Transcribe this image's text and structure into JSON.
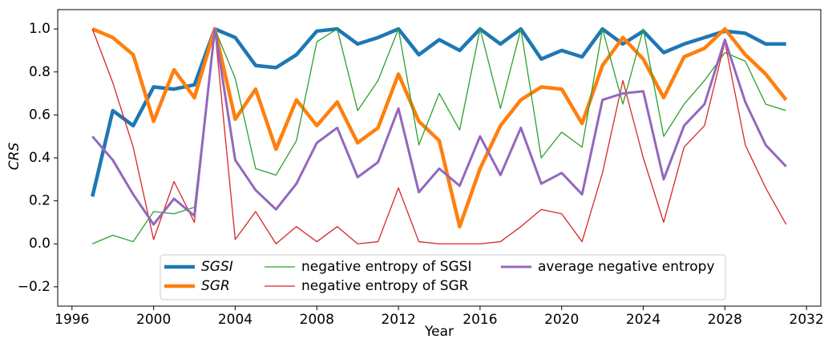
{
  "chart_data": {
    "type": "line",
    "x_label": "Year",
    "y_label": "CRS",
    "x": [
      1997,
      1998,
      1999,
      2000,
      2001,
      2002,
      2003,
      2004,
      2005,
      2006,
      2007,
      2008,
      2009,
      2010,
      2011,
      2012,
      2013,
      2014,
      2015,
      2016,
      2017,
      2018,
      2019,
      2020,
      2021,
      2022,
      2023,
      2024,
      2025,
      2026,
      2027,
      2028,
      2029,
      2030,
      2031
    ],
    "series": [
      {
        "name": "SGSI",
        "color": "#1f77b4",
        "values": [
          0.22,
          0.62,
          0.55,
          0.73,
          0.72,
          0.74,
          1.0,
          0.96,
          0.83,
          0.82,
          0.88,
          0.99,
          1.0,
          0.93,
          0.96,
          1.0,
          0.88,
          0.95,
          0.9,
          1.0,
          0.93,
          1.0,
          0.86,
          0.9,
          0.87,
          1.0,
          0.93,
          0.99,
          0.89,
          0.93,
          0.96,
          0.99,
          0.98,
          0.93,
          0.93
        ]
      },
      {
        "name": "SGR",
        "color": "#ff7f0e",
        "values": [
          1.0,
          0.96,
          0.88,
          0.57,
          0.81,
          0.68,
          1.0,
          0.58,
          0.72,
          0.44,
          0.67,
          0.55,
          0.66,
          0.47,
          0.54,
          0.79,
          0.57,
          0.48,
          0.08,
          0.35,
          0.55,
          0.67,
          0.73,
          0.72,
          0.56,
          0.83,
          0.96,
          0.86,
          0.68,
          0.87,
          0.91,
          1.0,
          0.88,
          0.79,
          0.67
        ]
      },
      {
        "name": "negative entropy of SGSI",
        "color": "#2ca02c",
        "values": [
          0.0,
          0.04,
          0.01,
          0.15,
          0.14,
          0.17,
          1.0,
          0.77,
          0.35,
          0.32,
          0.48,
          0.94,
          1.0,
          0.62,
          0.76,
          1.0,
          0.46,
          0.7,
          0.53,
          1.0,
          0.63,
          1.0,
          0.4,
          0.52,
          0.45,
          1.0,
          0.65,
          1.0,
          0.5,
          0.65,
          0.76,
          0.89,
          0.85,
          0.65,
          0.62
        ]
      },
      {
        "name": "negative entropy of SGR",
        "color": "#d62728",
        "values": [
          1.0,
          0.75,
          0.45,
          0.02,
          0.29,
          0.1,
          1.0,
          0.02,
          0.15,
          0.0,
          0.08,
          0.01,
          0.08,
          0.0,
          0.01,
          0.26,
          0.01,
          0.0,
          0.0,
          0.0,
          0.01,
          0.08,
          0.16,
          0.14,
          0.01,
          0.33,
          0.76,
          0.4,
          0.1,
          0.45,
          0.55,
          0.94,
          0.46,
          0.26,
          0.09
        ]
      },
      {
        "name": "average negative entropy",
        "color": "#9467bd",
        "values": [
          0.5,
          0.39,
          0.23,
          0.09,
          0.21,
          0.13,
          1.0,
          0.39,
          0.25,
          0.16,
          0.28,
          0.47,
          0.54,
          0.31,
          0.38,
          0.63,
          0.24,
          0.35,
          0.27,
          0.5,
          0.32,
          0.54,
          0.28,
          0.33,
          0.23,
          0.67,
          0.7,
          0.71,
          0.3,
          0.55,
          0.65,
          0.95,
          0.66,
          0.46,
          0.36
        ]
      }
    ],
    "xlim": [
      1995.3,
      2032.7
    ],
    "ylim": [
      -0.29,
      1.09
    ],
    "xticks": [
      1996,
      2000,
      2004,
      2008,
      2012,
      2016,
      2020,
      2024,
      2028,
      2032
    ],
    "yticks": [
      {
        "value": -0.2,
        "label": "−0.2"
      },
      {
        "value": 0,
        "label": "0.0"
      },
      0.2,
      0.4,
      0.6,
      0.8,
      {
        "value": 1,
        "label": "1.0"
      }
    ],
    "legend": "lower center",
    "grid": false
  }
}
